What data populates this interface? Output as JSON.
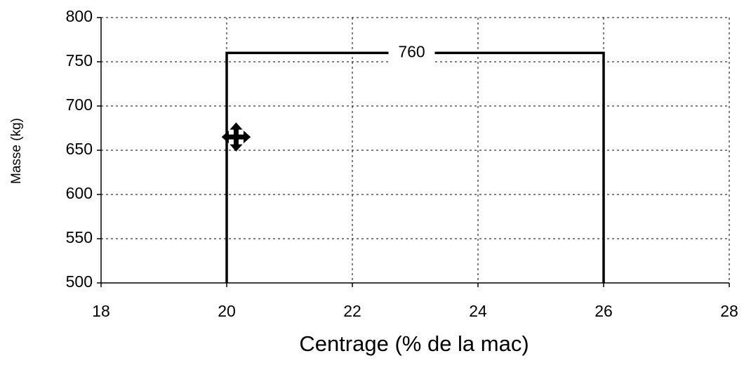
{
  "chart_data": {
    "type": "line",
    "x_label": "Centrage (% de la mac)",
    "y_label": "Masse (kg)",
    "annotation": "760",
    "series": [
      {
        "type": "line",
        "color": "#000000",
        "x": [
          20,
          20,
          26,
          26
        ],
        "values": [
          500,
          760,
          760,
          500
        ]
      },
      {
        "type": "scatter",
        "color": "#000000",
        "x": [
          20.15
        ],
        "values": [
          665
        ]
      }
    ],
    "xlim": [
      18,
      28
    ],
    "xticks": [
      18,
      20,
      22,
      24,
      26,
      28
    ],
    "ylim": [
      500,
      800
    ],
    "yticks": [
      500,
      550,
      600,
      650,
      700,
      750,
      800
    ],
    "grid": true
  }
}
